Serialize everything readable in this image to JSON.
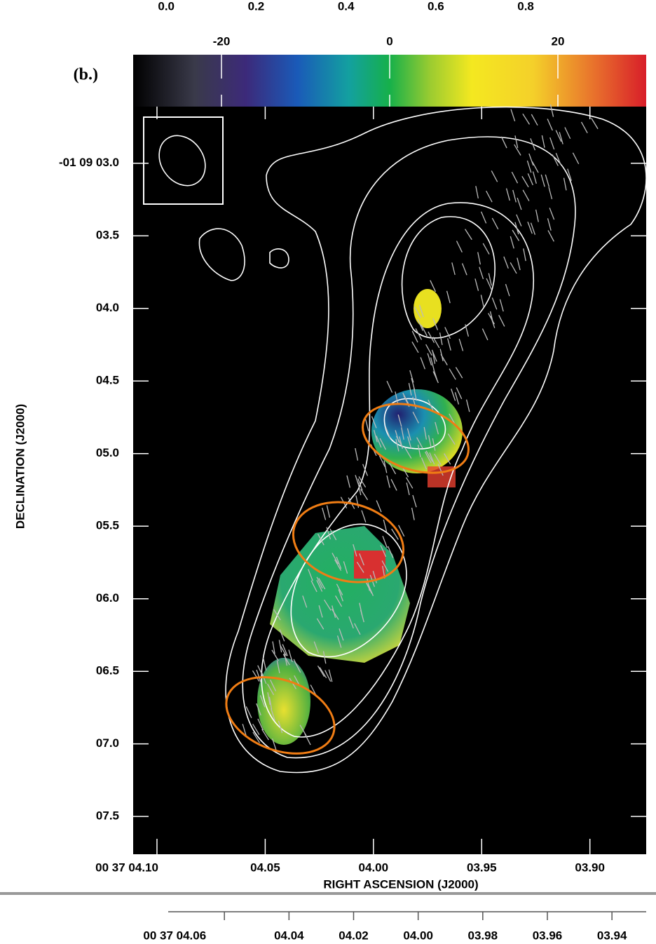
{
  "chart_data": [
    {
      "type": "image",
      "panel_label": "(b.)",
      "x_label": "RIGHT ASCENSION (J2000)",
      "y_label": "DECLINATION (J2000)",
      "xlim": [
        4.111,
        3.874
      ],
      "xticks": [
        {
          "value": 4.1,
          "label": "00 37 04.10"
        },
        {
          "value": 4.05,
          "label": "04.05"
        },
        {
          "value": 4.0,
          "label": "04.00"
        },
        {
          "value": 3.95,
          "label": "03.95"
        },
        {
          "value": 3.9,
          "label": "03.90"
        }
      ],
      "ylim": [
        2.61,
        7.76
      ],
      "yticks": [
        {
          "value": 3.0,
          "label": "-01 09 03.0"
        },
        {
          "value": 3.5,
          "label": "03.5"
        },
        {
          "value": 4.0,
          "label": "04.0"
        },
        {
          "value": 4.5,
          "label": "04.5"
        },
        {
          "value": 5.0,
          "label": "05.0"
        },
        {
          "value": 5.5,
          "label": "05.5"
        },
        {
          "value": 6.0,
          "label": "06.0"
        },
        {
          "value": 6.5,
          "label": "06.5"
        },
        {
          "value": 7.0,
          "label": "07.0"
        },
        {
          "value": 7.5,
          "label": "07.5"
        }
      ],
      "clim": [
        -30.5,
        30.5
      ],
      "cticks": [
        -20,
        0,
        20
      ]
    },
    {
      "type": "axis",
      "xlim": [
        4.0774,
        3.9294
      ],
      "xticks": [
        {
          "value": 4.06,
          "label": "00 37 04.06"
        },
        {
          "value": 4.04,
          "label": "04.04"
        },
        {
          "value": 4.02,
          "label": "04.02"
        },
        {
          "value": 4.0,
          "label": "04.00"
        },
        {
          "value": 3.98,
          "label": "03.98"
        },
        {
          "value": 3.96,
          "label": "03.96"
        },
        {
          "value": 3.94,
          "label": "03.94"
        }
      ]
    },
    {
      "type": "axis",
      "xlim": [
        -0.37,
        1.09
      ],
      "xticks": [
        {
          "value": 0,
          "label": "0.0"
        },
        0.2,
        0.4,
        0.6,
        0.8
      ]
    }
  ]
}
